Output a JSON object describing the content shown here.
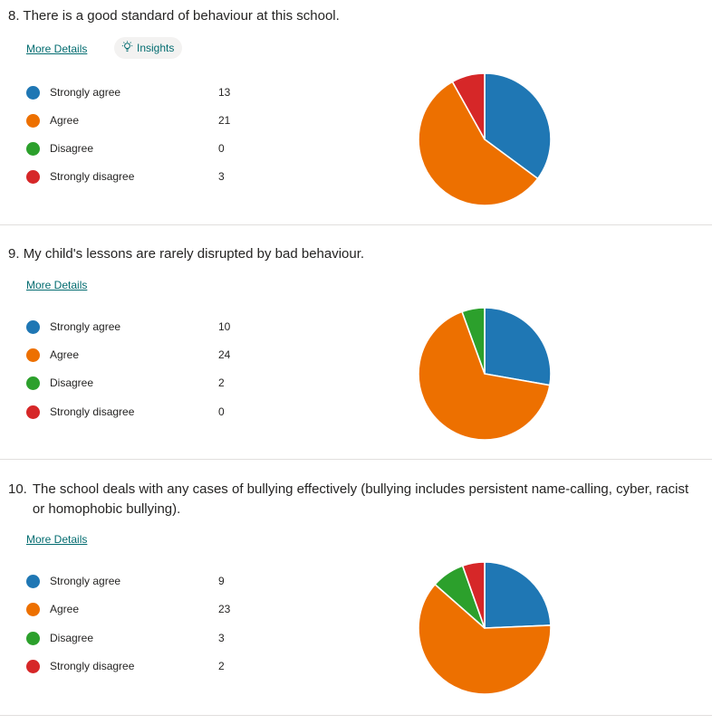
{
  "questions": [
    {
      "number": "8.",
      "text": "There is a good standard of behaviour at this school.",
      "more_details": "More Details",
      "insights": "Insights",
      "legend": [
        {
          "label": "Strongly agree",
          "count": "13"
        },
        {
          "label": "Agree",
          "count": "21"
        },
        {
          "label": "Disagree",
          "count": "0"
        },
        {
          "label": "Strongly disagree",
          "count": "3"
        }
      ]
    },
    {
      "number": "9.",
      "text": "My child's lessons are rarely disrupted by bad behaviour.",
      "more_details": "More Details",
      "legend": [
        {
          "label": "Strongly agree",
          "count": "10"
        },
        {
          "label": "Agree",
          "count": "24"
        },
        {
          "label": "Disagree",
          "count": "2"
        },
        {
          "label": "Strongly disagree",
          "count": "0"
        }
      ]
    },
    {
      "number": "10.",
      "text": "The school deals with any cases of bullying effectively (bullying includes persistent name-calling, cyber, racist or homophobic bullying).",
      "more_details": "More Details",
      "legend": [
        {
          "label": "Strongly agree",
          "count": "9"
        },
        {
          "label": "Agree",
          "count": "23"
        },
        {
          "label": "Disagree",
          "count": "3"
        },
        {
          "label": "Strongly disagree",
          "count": "2"
        }
      ]
    }
  ],
  "colors": {
    "strongly_agree": "#1f77b4",
    "agree": "#ed7000",
    "disagree": "#2ca02c",
    "strongly_disagree": "#d62728",
    "link": "#036c70"
  },
  "chart_data": [
    {
      "type": "pie",
      "categories": [
        "Strongly agree",
        "Agree",
        "Disagree",
        "Strongly disagree"
      ],
      "values": [
        13,
        21,
        0,
        3
      ]
    },
    {
      "type": "pie",
      "categories": [
        "Strongly agree",
        "Agree",
        "Disagree",
        "Strongly disagree"
      ],
      "values": [
        10,
        24,
        2,
        0
      ]
    },
    {
      "type": "pie",
      "categories": [
        "Strongly agree",
        "Agree",
        "Disagree",
        "Strongly disagree"
      ],
      "values": [
        9,
        23,
        3,
        2
      ]
    }
  ]
}
